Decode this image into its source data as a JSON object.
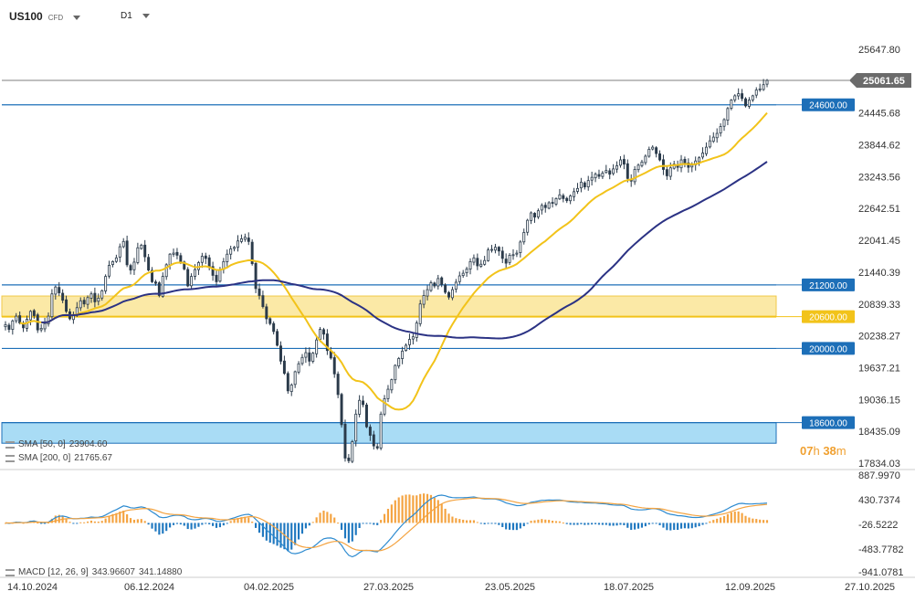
{
  "header": {
    "symbol": "US100",
    "symbol_type": "CFD",
    "timeframe": "D1"
  },
  "countdown": {
    "hours": "07",
    "h_label": "h",
    "minutes": "38",
    "m_label": "m"
  },
  "legend": {
    "sma50": {
      "label": "SMA [50, 0]",
      "value": "23904.60",
      "color": "#f2c31a"
    },
    "sma200": {
      "label": "SMA [200, 0]",
      "value": "21765.67",
      "color": "#2b3284"
    },
    "macd": {
      "label": "MACD [12, 26, 9]",
      "value1": "343.96607",
      "value2": "341.14880"
    }
  },
  "colors": {
    "candle": "#2a3a4a",
    "level_line": "#1d6fb8",
    "level_label_bg": "#1d6fb8",
    "yellow_zone": "#fbe9a6",
    "blue_zone": "#a9dcf5",
    "macd_pos": "#f4a340",
    "macd_neg": "#1f78c0",
    "macd_line": "#2e8bd0",
    "signal_line": "#f4a340"
  },
  "chart_data": {
    "type": "candlestick",
    "price_axis": {
      "ticks": [
        "25647.80",
        "24445.68",
        "23844.62",
        "23243.56",
        "22642.51",
        "22041.45",
        "21440.39",
        "20839.33",
        "20238.27",
        "19637.21",
        "19036.15",
        "18435.09",
        "17834.03"
      ],
      "range": [
        17834.03,
        25647.8
      ]
    },
    "current_price": {
      "label": "25061.65",
      "value": 25061.65
    },
    "levels": [
      {
        "label": "24600.00",
        "value": 24600
      },
      {
        "label": "21200.00",
        "value": 21200
      },
      {
        "label": "20600.00",
        "value": 20600,
        "highlight": true
      },
      {
        "label": "20000.00",
        "value": 20000
      },
      {
        "label": "18600.00",
        "value": 18600
      }
    ],
    "zones": [
      {
        "kind": "supply-demand",
        "from": 20600,
        "to": 20990,
        "color": "yellow"
      },
      {
        "kind": "supply-demand",
        "from": 18210,
        "to": 18600,
        "color": "blue"
      }
    ],
    "x_axis": {
      "labels": [
        "14.10.2024",
        "06.12.2024",
        "04.02.2025",
        "27.03.2025",
        "23.05.2025",
        "18.07.2025",
        "12.09.2025",
        "27.10.2025"
      ]
    },
    "close": [
      20450,
      20360,
      20520,
      20610,
      20480,
      20390,
      20550,
      20700,
      20620,
      20350,
      20380,
      20470,
      20610,
      21030,
      21160,
      21050,
      20910,
      20700,
      20560,
      20640,
      20770,
      20900,
      20840,
      20960,
      21030,
      20880,
      20950,
      21090,
      21360,
      21570,
      21640,
      21710,
      21920,
      22020,
      21580,
      21480,
      21630,
      21900,
      21950,
      21730,
      21480,
      21260,
      21230,
      21000,
      21360,
      21580,
      21780,
      21800,
      21760,
      21620,
      21500,
      21180,
      21360,
      21490,
      21620,
      21740,
      21700,
      21540,
      21380,
      21260,
      21480,
      21640,
      21780,
      21880,
      21910,
      22030,
      22070,
      22100,
      22020,
      21600,
      21130,
      21000,
      20790,
      20560,
      20470,
      20320,
      20060,
      19760,
      19530,
      19200,
      19310,
      19560,
      19710,
      19830,
      19920,
      19760,
      19910,
      20160,
      20360,
      20270,
      19960,
      19820,
      19520,
      19130,
      18560,
      17930,
      17880,
      18240,
      18760,
      19020,
      18940,
      18520,
      18360,
      18160,
      18120,
      18760,
      19050,
      19230,
      19410,
      19680,
      19810,
      19950,
      20060,
      20170,
      20220,
      20480,
      20840,
      21000,
      21110,
      21240,
      21180,
      21320,
      21210,
      21060,
      20970,
      21110,
      21250,
      21370,
      21420,
      21500,
      21640,
      21710,
      21560,
      21590,
      21660,
      21860,
      21870,
      21910,
      21840,
      21700,
      21610,
      21760,
      21770,
      21800,
      22010,
      22190,
      22420,
      22560,
      22480,
      22600,
      22700,
      22660,
      22750,
      22740,
      22830,
      22900,
      22830,
      22790,
      22880,
      22960,
      23020,
      23140,
      23050,
      23170,
      23230,
      23290,
      23250,
      23310,
      23360,
      23290,
      23390,
      23450,
      23560,
      23480,
      23210,
      23160,
      23380,
      23460,
      23520,
      23630,
      23760,
      23800,
      23680,
      23560,
      23380,
      23260,
      23410,
      23480,
      23420,
      23560,
      23500,
      23420,
      23460,
      23540,
      23600,
      23690,
      23800,
      23920,
      23990,
      24060,
      24190,
      24320,
      24530,
      24690,
      24770,
      24810,
      24720,
      24580,
      24690,
      24770,
      24880,
      24900,
      24980,
      25061
    ]
  }
}
